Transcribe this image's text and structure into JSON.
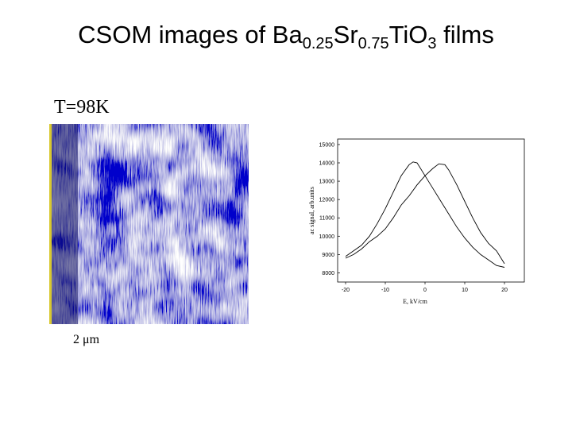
{
  "slide": {
    "title": [
      "CSOM images of Ba",
      "0.25",
      "Sr",
      "0.75",
      "TiO",
      "3",
      " films"
    ],
    "image_caption": "T=98K",
    "scale_label": "2 μm"
  },
  "chart_data": {
    "type": "line",
    "x_label": "E, kV/cm",
    "y_label": "ac signal, arb.units",
    "xlim": [
      -22,
      25
    ],
    "ylim": [
      7500,
      15300
    ],
    "xticks": [
      -20,
      -10,
      0,
      10,
      20
    ],
    "yticks": [
      8000,
      9000,
      10000,
      11000,
      12000,
      13000,
      14000,
      15000
    ],
    "series": [
      {
        "color": "#000000",
        "x": [
          -20,
          -18,
          -16,
          -14,
          -12,
          -10,
          -8,
          -6,
          -4,
          -3,
          -2,
          0,
          2,
          4,
          6,
          8,
          10,
          12,
          14,
          16,
          18,
          20
        ],
        "values": [
          8900,
          9200,
          9500,
          10000,
          10700,
          11500,
          12400,
          13300,
          13900,
          14050,
          14000,
          13300,
          12600,
          11900,
          11200,
          10500,
          9900,
          9400,
          9000,
          8700,
          8400,
          8300
        ]
      },
      {
        "color": "#000000",
        "x": [
          -20,
          -18,
          -16,
          -14,
          -12,
          -10,
          -8,
          -6,
          -4,
          -2,
          0,
          2,
          3.5,
          5,
          6,
          8,
          10,
          12,
          14,
          16,
          18,
          20
        ],
        "values": [
          8800,
          9000,
          9300,
          9700,
          10000,
          10400,
          11000,
          11700,
          12200,
          12800,
          13300,
          13700,
          13950,
          13900,
          13600,
          12800,
          11900,
          11000,
          10200,
          9600,
          9200,
          8500
        ]
      }
    ]
  }
}
